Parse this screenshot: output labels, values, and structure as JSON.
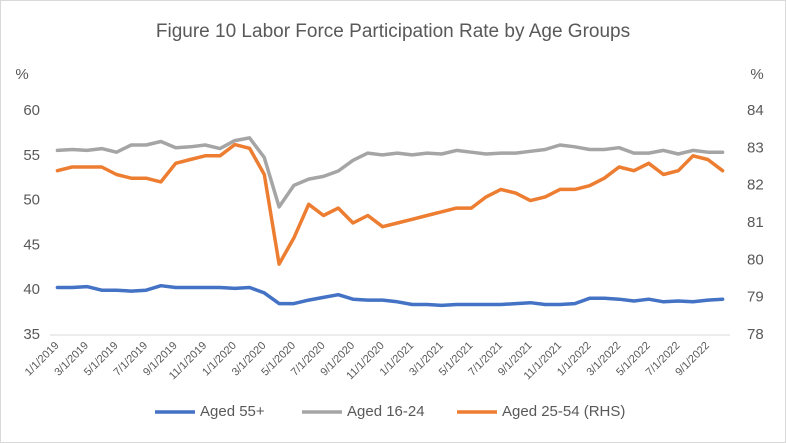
{
  "chart_data": {
    "type": "line",
    "title": "Figure 10 Labor Force Participation Rate by Age Groups",
    "y_label": "%",
    "y2_label": "%",
    "categories": [
      "1/1/2019",
      null,
      "3/1/2019",
      null,
      "5/1/2019",
      null,
      "7/1/2019",
      null,
      "9/1/2019",
      null,
      "11/1/2019",
      null,
      "1/1/2020",
      null,
      "3/1/2020",
      null,
      "5/1/2020",
      null,
      "7/1/2020",
      null,
      "9/1/2020",
      null,
      "11/1/2020",
      null,
      "1/1/2021",
      null,
      "3/1/2021",
      null,
      "5/1/2021",
      null,
      "7/1/2021",
      null,
      "9/1/2021",
      null,
      "11/1/2021",
      null,
      "1/1/2022",
      null,
      "3/1/2022",
      null,
      "5/1/2022",
      null,
      "7/1/2022",
      null,
      "9/1/2022",
      null
    ],
    "series": [
      {
        "name": "Aged 55+",
        "color": "#4472c4",
        "axis": "y",
        "values": [
          40.3,
          40.3,
          40.4,
          40.0,
          40.0,
          39.9,
          40.0,
          40.5,
          40.3,
          40.3,
          40.3,
          40.3,
          40.2,
          40.3,
          39.7,
          38.5,
          38.5,
          38.9,
          39.2,
          39.5,
          39.0,
          38.9,
          38.9,
          38.7,
          38.4,
          38.4,
          38.3,
          38.4,
          38.4,
          38.4,
          38.4,
          38.5,
          38.6,
          38.4,
          38.4,
          38.5,
          39.1,
          39.1,
          39.0,
          38.8,
          39.0,
          38.7,
          38.8,
          38.7,
          38.9,
          39.0
        ]
      },
      {
        "name": "Aged 16-24",
        "color": "#a5a5a5",
        "axis": "y",
        "values": [
          55.6,
          55.7,
          55.6,
          55.8,
          55.4,
          56.2,
          56.2,
          56.6,
          55.9,
          56.0,
          56.2,
          55.8,
          56.7,
          57.0,
          54.8,
          49.3,
          51.7,
          52.4,
          52.7,
          53.3,
          54.5,
          55.3,
          55.1,
          55.3,
          55.1,
          55.3,
          55.2,
          55.6,
          55.4,
          55.2,
          55.3,
          55.3,
          55.5,
          55.7,
          56.2,
          56.0,
          55.7,
          55.7,
          55.9,
          55.3,
          55.3,
          55.6,
          55.2,
          55.6,
          55.4,
          55.4
        ]
      },
      {
        "name": "Aged 25-54 (RHS)",
        "color": "#ed7d31",
        "axis": "y2",
        "values": [
          82.4,
          82.5,
          82.5,
          82.5,
          82.3,
          82.2,
          82.2,
          82.1,
          82.6,
          82.7,
          82.8,
          82.8,
          83.1,
          83.0,
          82.3,
          79.9,
          80.6,
          81.5,
          81.2,
          81.4,
          81.0,
          81.2,
          80.9,
          81.0,
          81.1,
          81.2,
          81.3,
          81.4,
          81.4,
          81.7,
          81.9,
          81.8,
          81.6,
          81.7,
          81.9,
          81.9,
          82.0,
          82.2,
          82.5,
          82.4,
          82.6,
          82.3,
          82.4,
          82.8,
          82.7,
          82.4
        ]
      }
    ],
    "ylim": [
      35,
      60
    ],
    "yticks": [
      35,
      40,
      45,
      50,
      55,
      60
    ],
    "y2lim": [
      78,
      84
    ],
    "y2ticks": [
      78,
      79,
      80,
      81,
      82,
      83,
      84
    ],
    "grid": false,
    "legend": "bottom"
  }
}
